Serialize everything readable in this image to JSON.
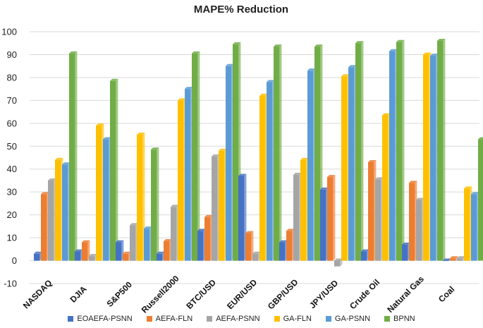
{
  "chart_data": {
    "type": "bar",
    "title": "MAPE% Reduction",
    "xlabel": "",
    "ylabel": "",
    "ylim": [
      -10,
      100
    ],
    "yticks": [
      -10,
      0,
      10,
      20,
      30,
      40,
      50,
      60,
      70,
      80,
      90,
      100
    ],
    "grid": true,
    "legend_position": "bottom",
    "categories": [
      "NASDAQ",
      "DJIA",
      "S&P500",
      "Russell2000",
      "BTC/USD",
      "EUR/USD",
      "GBP/USD",
      "JPY/USD",
      "Crude Oil",
      "Natural Gas",
      "Coal"
    ],
    "series": [
      {
        "name": "EOAEFA-PSNN",
        "color": "#4472c4",
        "values": [
          3,
          4,
          8,
          3,
          13,
          37,
          8,
          31,
          4,
          7,
          0
        ]
      },
      {
        "name": "AEFA-FLN",
        "color": "#ed7d31",
        "values": [
          29,
          8,
          3,
          8.5,
          19,
          12,
          13,
          36.5,
          43,
          34,
          1
        ]
      },
      {
        "name": "AEFA-PSNN",
        "color": "#a5a5a5",
        "values": [
          35,
          2,
          15.5,
          23.5,
          45.5,
          3,
          37.5,
          -2.5,
          35.5,
          26.5,
          1
        ]
      },
      {
        "name": "GA-FLN",
        "color": "#ffc000",
        "values": [
          44,
          59,
          55,
          70,
          48,
          72,
          44,
          80.5,
          63.5,
          90,
          31.5
        ]
      },
      {
        "name": "GA-PSNN",
        "color": "#5b9bd5",
        "values": [
          42,
          53,
          14,
          75,
          85,
          78,
          83,
          84.5,
          91.5,
          89.5,
          29
        ]
      },
      {
        "name": "BPNN",
        "color": "#70ad47",
        "values": [
          90.5,
          78.5,
          48.5,
          90.5,
          94.5,
          93.5,
          93.5,
          95,
          95.5,
          96,
          53
        ]
      }
    ]
  }
}
